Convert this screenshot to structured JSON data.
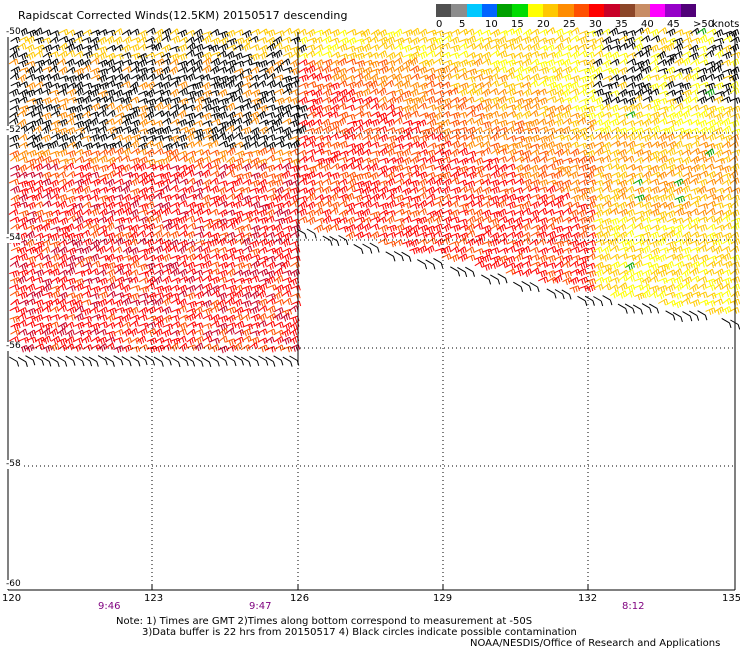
{
  "title": "Rapidscat Corrected Winds(12.5KM) 20150517 descending",
  "legend": {
    "ticks": [
      "0",
      "5",
      "10",
      "15",
      "20",
      "25",
      "30",
      "35",
      "40",
      "45",
      ">50"
    ],
    "unit": "knots",
    "colors": [
      "#505050",
      "#8c8c8c",
      "#00c8ff",
      "#0064ff",
      "#00a000",
      "#00dc00",
      "#ffff00",
      "#ffc800",
      "#ff8c00",
      "#ff5000",
      "#ff0000",
      "#c80028",
      "#8c4628",
      "#c88c64",
      "#ff00ff",
      "#9600c8",
      "#500078"
    ]
  },
  "map": {
    "lon_ticks": [
      "120",
      "123",
      "126",
      "129",
      "132",
      "135"
    ],
    "lat_ticks": [
      "-50",
      "-52",
      "-54",
      "-56",
      "-58",
      "-60"
    ],
    "time_labels": [
      "9:46",
      "9:47",
      "8:12"
    ]
  },
  "notes": {
    "line1": "Note: 1) Times are GMT 2)Times along bottom correspond to measurement at -50S",
    "line2": "3)Data buffer is 22 hrs from 20150517 4) Black circles indicate possible contamination"
  },
  "credit": "NOAA/NESDIS/Office of Research and Applications"
}
